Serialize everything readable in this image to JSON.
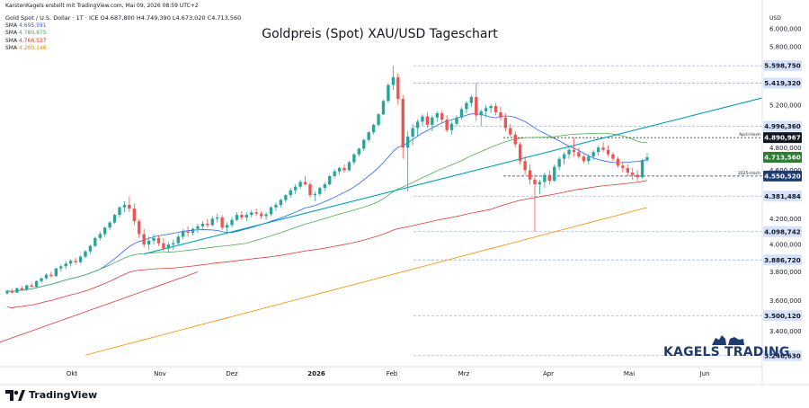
{
  "header": {
    "credit": "KarstenKagels erstellt mit TradingView.com, Mai 09, 2026 08:59 UTC+2",
    "symbol": "Gold Spot / U.S. Dollar · 1T · ICE",
    "ohlc": "O4.687,800 H4.749,390 L4.673,020 C4.713,560",
    "sma": [
      {
        "label": "SMA",
        "value": "4.695,591",
        "color": "#2962ff"
      },
      {
        "label": "SMA",
        "value": "4.780,875",
        "color": "#4caf50"
      },
      {
        "label": "SMA",
        "value": "4.768,537",
        "color": "#e53935"
      },
      {
        "label": "SMA",
        "value": "4.289,146",
        "color": "#fb8c00"
      }
    ]
  },
  "footer": {
    "logo_text": "TradingView"
  },
  "brand": {
    "text": "KAGELS TRADING",
    "color": "#1e3c72"
  },
  "chart_data": {
    "type": "candlestick",
    "title": "Goldpreis (Spot) XAU/USD Tageschart",
    "currency": "USD",
    "y_scale": "log",
    "ylim": [
      3180,
      6250
    ],
    "x_tick_labels": [
      "Okt",
      "Nov",
      "Dez",
      "2026",
      "Feb",
      "Mrz",
      "Apr",
      "Mai",
      "Jun"
    ],
    "y_tick_labels": [
      "6.000,000",
      "5.800,000",
      "5.200,000",
      "4.800,000",
      "4.600,000",
      "4.200,000",
      "4.000,000",
      "3.800,000",
      "3.600,000",
      "3.400,000"
    ],
    "y_tick_values": [
      6000,
      5800,
      5200,
      4800,
      4600,
      4200,
      4000,
      3800,
      3600,
      3400
    ],
    "levels": [
      {
        "value": 5598.75,
        "label": "5.598,750",
        "style": "dash-blue"
      },
      {
        "value": 5419.32,
        "label": "5.419,320",
        "style": "dash-blue"
      },
      {
        "value": 4996.36,
        "label": "4.996,360",
        "style": "dash-blue"
      },
      {
        "value": 4890.967,
        "label": "4.890,967",
        "style": "dash-black",
        "note": "April-Hoch"
      },
      {
        "value": 4713.56,
        "label": "4.713,560",
        "style": "price"
      },
      {
        "value": 4550.52,
        "label": "4.550,520",
        "style": "dash-navy",
        "note": "2025-Hoch"
      },
      {
        "value": 4381.484,
        "label": "4.381,484",
        "style": "dash-blue"
      },
      {
        "value": 4098.742,
        "label": "4.098,742",
        "style": "dash-blue"
      },
      {
        "value": 3886.72,
        "label": "3.886,720",
        "style": "dash-blue"
      },
      {
        "value": 3500.12,
        "label": "3.500,120",
        "style": "dash-blue"
      },
      {
        "value": 3246.63,
        "label": "3.246,630",
        "style": "dash-blue"
      }
    ],
    "colors": {
      "up": "#26a69a",
      "down": "#ef5350",
      "trend": "#00a0b4",
      "sma1": "#2962ff",
      "sma2": "#4caf50",
      "sma3": "#e53935",
      "sma4": "#fb8c00"
    },
    "candles": [
      [
        3650,
        3672,
        3640,
        3668
      ],
      [
        3668,
        3680,
        3650,
        3655
      ],
      [
        3655,
        3690,
        3650,
        3685
      ],
      [
        3685,
        3700,
        3670,
        3675
      ],
      [
        3675,
        3710,
        3665,
        3705
      ],
      [
        3705,
        3720,
        3690,
        3695
      ],
      [
        3695,
        3740,
        3690,
        3735
      ],
      [
        3735,
        3760,
        3720,
        3755
      ],
      [
        3755,
        3790,
        3745,
        3780
      ],
      [
        3780,
        3800,
        3760,
        3770
      ],
      [
        3770,
        3830,
        3765,
        3825
      ],
      [
        3825,
        3850,
        3800,
        3840
      ],
      [
        3840,
        3880,
        3820,
        3860
      ],
      [
        3860,
        3890,
        3840,
        3880
      ],
      [
        3880,
        3900,
        3850,
        3870
      ],
      [
        3870,
        3920,
        3860,
        3910
      ],
      [
        3910,
        3960,
        3900,
        3950
      ],
      [
        3950,
        4000,
        3930,
        3990
      ],
      [
        3990,
        4060,
        3980,
        4050
      ],
      [
        4050,
        4100,
        4030,
        4080
      ],
      [
        4080,
        4140,
        4060,
        4130
      ],
      [
        4130,
        4180,
        4110,
        4170
      ],
      [
        4170,
        4240,
        4160,
        4230
      ],
      [
        4230,
        4300,
        4210,
        4290
      ],
      [
        4290,
        4340,
        4250,
        4310
      ],
      [
        4310,
        4381,
        4250,
        4280
      ],
      [
        4280,
        4320,
        4150,
        4180
      ],
      [
        4180,
        4200,
        4050,
        4080
      ],
      [
        4080,
        4120,
        3980,
        4000
      ],
      [
        4000,
        4060,
        3960,
        4030
      ],
      [
        4030,
        4080,
        4000,
        4050
      ],
      [
        4050,
        4070,
        3990,
        4010
      ],
      [
        4010,
        4050,
        3950,
        3970
      ],
      [
        3970,
        4020,
        3940,
        4000
      ],
      [
        4000,
        4040,
        3960,
        4010
      ],
      [
        4010,
        4080,
        3990,
        4060
      ],
      [
        4060,
        4120,
        4040,
        4100
      ],
      [
        4100,
        4140,
        4060,
        4090
      ],
      [
        4090,
        4130,
        4070,
        4120
      ],
      [
        4120,
        4160,
        4090,
        4140
      ],
      [
        4140,
        4180,
        4110,
        4160
      ],
      [
        4160,
        4200,
        4130,
        4150
      ],
      [
        4150,
        4220,
        4140,
        4200
      ],
      [
        4200,
        4240,
        4170,
        4210
      ],
      [
        4210,
        4230,
        4110,
        4130
      ],
      [
        4130,
        4170,
        4080,
        4150
      ],
      [
        4150,
        4210,
        4130,
        4190
      ],
      [
        4190,
        4250,
        4180,
        4230
      ],
      [
        4230,
        4260,
        4190,
        4210
      ],
      [
        4210,
        4250,
        4180,
        4230
      ],
      [
        4230,
        4270,
        4210,
        4250
      ],
      [
        4250,
        4280,
        4220,
        4240
      ],
      [
        4240,
        4260,
        4200,
        4220
      ],
      [
        4220,
        4250,
        4190,
        4235
      ],
      [
        4235,
        4300,
        4220,
        4290
      ],
      [
        4290,
        4330,
        4260,
        4310
      ],
      [
        4310,
        4360,
        4290,
        4350
      ],
      [
        4350,
        4400,
        4330,
        4390
      ],
      [
        4390,
        4450,
        4370,
        4430
      ],
      [
        4430,
        4480,
        4400,
        4460
      ],
      [
        4460,
        4520,
        4440,
        4500
      ],
      [
        4500,
        4550,
        4470,
        4480
      ],
      [
        4480,
        4500,
        4370,
        4390
      ],
      [
        4390,
        4420,
        4340,
        4400
      ],
      [
        4400,
        4460,
        4380,
        4450
      ],
      [
        4450,
        4500,
        4420,
        4480
      ],
      [
        4480,
        4560,
        4470,
        4550
      ],
      [
        4550,
        4610,
        4530,
        4590
      ],
      [
        4590,
        4630,
        4560,
        4620
      ],
      [
        4620,
        4650,
        4580,
        4600
      ],
      [
        4600,
        4680,
        4590,
        4670
      ],
      [
        4670,
        4750,
        4650,
        4740
      ],
      [
        4740,
        4800,
        4720,
        4790
      ],
      [
        4790,
        4880,
        4770,
        4870
      ],
      [
        4870,
        4950,
        4850,
        4940
      ],
      [
        4940,
        5020,
        4920,
        5010
      ],
      [
        5010,
        5120,
        4990,
        5110
      ],
      [
        5110,
        5250,
        5100,
        5240
      ],
      [
        5240,
        5420,
        5220,
        5400
      ],
      [
        5400,
        5598.75,
        5350,
        5480
      ],
      [
        5480,
        5520,
        5200,
        5260
      ],
      [
        5260,
        5300,
        4700,
        4800
      ],
      [
        4800,
        4950,
        4420,
        4900
      ],
      [
        4900,
        5020,
        4820,
        4980
      ],
      [
        4980,
        5060,
        4900,
        5040
      ],
      [
        5040,
        5110,
        5000,
        5090
      ],
      [
        5090,
        5130,
        4980,
        5010
      ],
      [
        5010,
        5100,
        4950,
        5080
      ],
      [
        5080,
        5140,
        5040,
        5120
      ],
      [
        5120,
        5150,
        5030,
        5060
      ],
      [
        5060,
        5100,
        4940,
        4960
      ],
      [
        4960,
        5040,
        4920,
        5020
      ],
      [
        5020,
        5100,
        5000,
        5080
      ],
      [
        5080,
        5180,
        5060,
        5160
      ],
      [
        5160,
        5240,
        5120,
        5220
      ],
      [
        5220,
        5300,
        5180,
        5280
      ],
      [
        5280,
        5419.32,
        5050,
        5100
      ],
      [
        5100,
        5160,
        5000,
        5140
      ],
      [
        5140,
        5200,
        5080,
        5170
      ],
      [
        5170,
        5210,
        5120,
        5190
      ],
      [
        5190,
        5220,
        5100,
        5130
      ],
      [
        5130,
        5180,
        5050,
        5080
      ],
      [
        5080,
        5120,
        4950,
        4980
      ],
      [
        4980,
        5020,
        4900,
        4920
      ],
      [
        4920,
        4950,
        4800,
        4830
      ],
      [
        4830,
        4850,
        4650,
        4680
      ],
      [
        4680,
        4720,
        4560,
        4600
      ],
      [
        4600,
        4650,
        4480,
        4520
      ],
      [
        4520,
        4560,
        4098.742,
        4480
      ],
      [
        4480,
        4520,
        4400,
        4500
      ],
      [
        4500,
        4580,
        4450,
        4560
      ],
      [
        4560,
        4600,
        4480,
        4510
      ],
      [
        4510,
        4650,
        4500,
        4630
      ],
      [
        4630,
        4720,
        4600,
        4700
      ],
      [
        4700,
        4760,
        4650,
        4740
      ],
      [
        4740,
        4820,
        4700,
        4780
      ],
      [
        4780,
        4890.967,
        4720,
        4760
      ],
      [
        4760,
        4800,
        4700,
        4720
      ],
      [
        4720,
        4740,
        4660,
        4680
      ],
      [
        4680,
        4740,
        4650,
        4720
      ],
      [
        4720,
        4780,
        4690,
        4760
      ],
      [
        4760,
        4820,
        4730,
        4800
      ],
      [
        4800,
        4850,
        4760,
        4780
      ],
      [
        4780,
        4820,
        4720,
        4740
      ],
      [
        4740,
        4760,
        4680,
        4700
      ],
      [
        4700,
        4720,
        4620,
        4640
      ],
      [
        4640,
        4680,
        4580,
        4620
      ],
      [
        4620,
        4650,
        4550,
        4580
      ],
      [
        4580,
        4620,
        4520,
        4560
      ],
      [
        4560,
        4600,
        4510,
        4540
      ],
      [
        4540,
        4700,
        4530,
        4687.8
      ],
      [
        4687.8,
        4749.39,
        4673.02,
        4713.56
      ]
    ]
  }
}
